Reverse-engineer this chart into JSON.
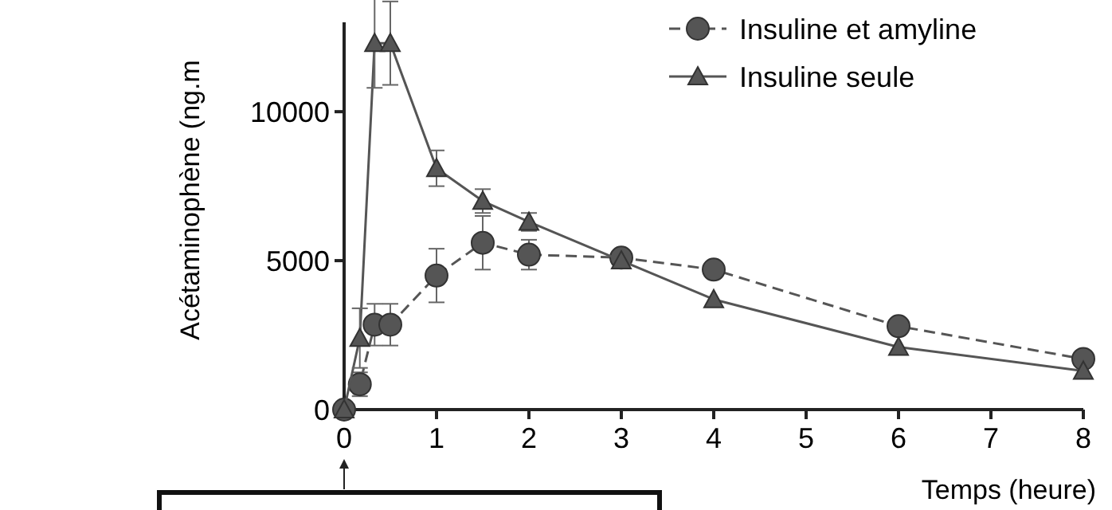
{
  "chart_data": {
    "type": "line",
    "xlabel": "Temps (heure)",
    "ylabel": "Acétaminophène (ng.m",
    "xlim": [
      0,
      8
    ],
    "xticks": [
      0,
      1,
      2,
      3,
      4,
      5,
      6,
      7,
      8
    ],
    "ylim": [
      0,
      13000
    ],
    "yticks": [
      0,
      5000,
      10000
    ],
    "grid": false,
    "legend": "top right",
    "series": [
      {
        "name": "Insuline et amyline",
        "color": "#555555",
        "marker": "circle",
        "line_style": "dashed",
        "x": [
          0,
          0.17,
          0.33,
          0.5,
          1,
          1.5,
          2,
          3,
          4,
          6,
          8
        ],
        "values": [
          0,
          850,
          2850,
          2850,
          4500,
          5600,
          5200,
          5100,
          4700,
          2800,
          1700
        ],
        "errors": [
          null,
          400,
          700,
          700,
          900,
          900,
          500,
          null,
          null,
          null,
          null
        ]
      },
      {
        "name": "Insuline seule",
        "color": "#555555",
        "marker": "triangle",
        "line_style": "solid",
        "x": [
          0,
          0.17,
          0.33,
          0.5,
          1,
          1.5,
          2,
          3,
          4,
          6,
          8
        ],
        "values": [
          0,
          2400,
          12300,
          12300,
          8100,
          7000,
          6300,
          5000,
          3700,
          2100,
          1300
        ],
        "errors": [
          null,
          1000,
          1500,
          1400,
          600,
          400,
          300,
          null,
          null,
          null,
          null
        ]
      }
    ]
  }
}
